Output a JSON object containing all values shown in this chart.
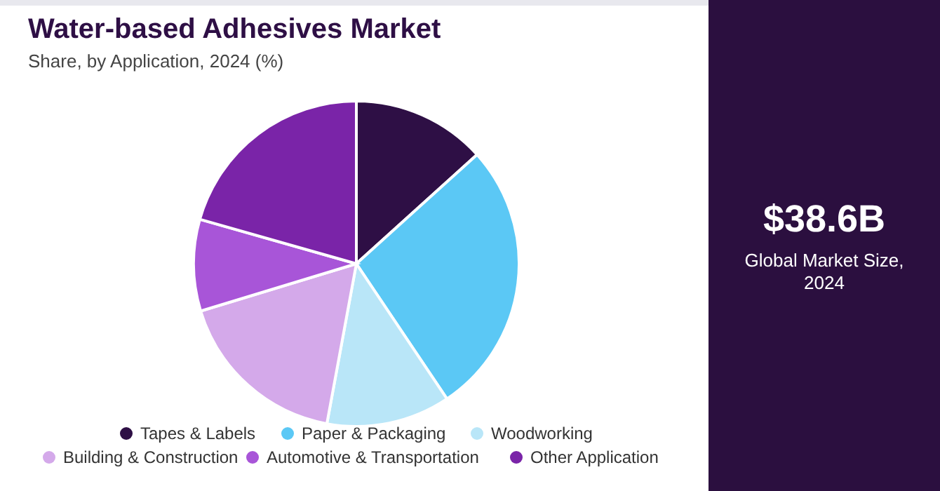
{
  "chart_data": {
    "type": "pie",
    "title": "Water-based Adhesives Market",
    "subtitle": "Share, by Application, 2024 (%)",
    "categories": [
      "Tapes & Labels",
      "Paper & Packaging",
      "Woodworking",
      "Building & Construction",
      "Automotive & Transportation",
      "Other Application"
    ],
    "values": [
      13.3,
      27.3,
      12.3,
      17.4,
      9.1,
      20.6
    ],
    "colors": [
      "#2e0f45",
      "#5bc8f5",
      "#b9e6f8",
      "#d4a9ea",
      "#a855d8",
      "#7a24a8"
    ],
    "legend": "bottom",
    "annotations": [
      "$38.6B",
      "Global Market Size, 2024"
    ]
  }
}
